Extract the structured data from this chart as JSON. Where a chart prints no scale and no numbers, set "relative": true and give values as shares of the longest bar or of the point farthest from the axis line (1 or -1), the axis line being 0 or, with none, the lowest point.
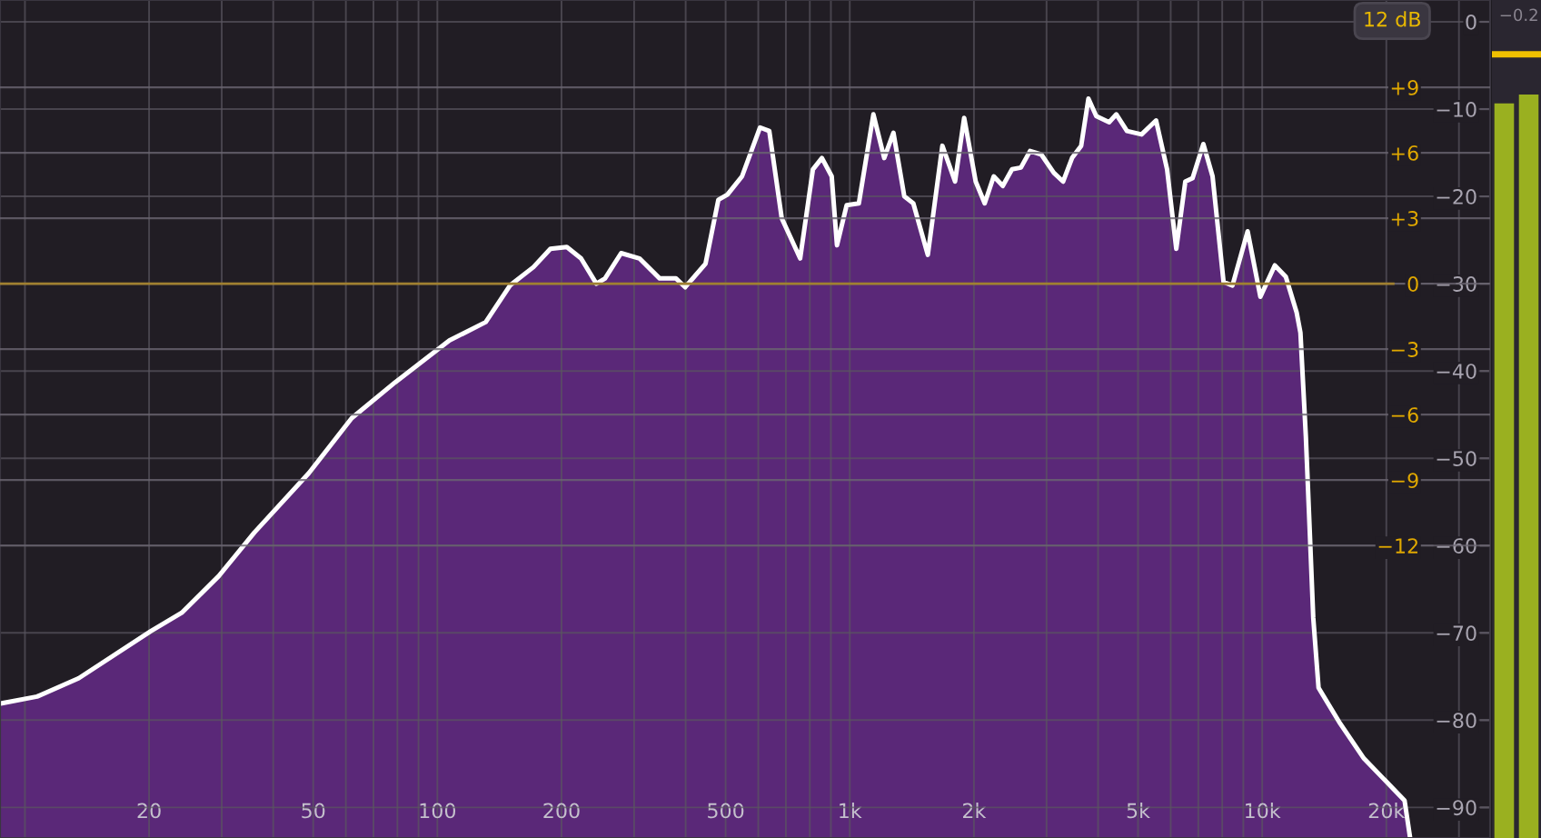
{
  "chart_data": [
    {
      "type": "area",
      "x": [
        8.7,
        10.7,
        13.5,
        20.2,
        24,
        29.5,
        36,
        48.8,
        62,
        79,
        107,
        131,
        150,
        171,
        188,
        206,
        223,
        243,
        255,
        279,
        309,
        346,
        379,
        399,
        447,
        480,
        505,
        548,
        606,
        638,
        684,
        758,
        814,
        856,
        904,
        931,
        983,
        1052,
        1141,
        1212,
        1276,
        1356,
        1426,
        1546,
        1677,
        1800,
        1894,
        2020,
        2124,
        2234,
        2350,
        2474,
        2600,
        2736,
        2914,
        3124,
        3290,
        3459,
        3640,
        3790,
        3960,
        4255,
        4430,
        4700,
        5100,
        5530,
        5880,
        6190,
        6510,
        6780,
        7200,
        7580,
        8060,
        8470,
        9220,
        9900,
        10730,
        11410,
        12120,
        12380,
        12760,
        13030,
        13300,
        13700,
        15460,
        17650,
        22140,
        22810
      ],
      "series": [
        {
          "color": "#5a2878",
          "values": [
            -78.1,
            -77.3,
            -75.2,
            -69.8,
            -67.7,
            -63.5,
            -58.5,
            -51.7,
            -45.4,
            -41.3,
            -36.5,
            -34.4,
            -30.2,
            -28.1,
            -26.0,
            -25.8,
            -27.1,
            -30.0,
            -29.4,
            -26.5,
            -27.1,
            -29.4,
            -29.4,
            -30.4,
            -27.7,
            -20.4,
            -19.8,
            -17.7,
            -12.1,
            -12.5,
            -22.5,
            -27.1,
            -16.9,
            -15.6,
            -17.7,
            -25.6,
            -21.0,
            -20.8,
            -10.6,
            -15.6,
            -12.7,
            -20.0,
            -20.8,
            -26.7,
            -14.2,
            -18.3,
            -11.0,
            -18.3,
            -20.8,
            -17.7,
            -18.8,
            -16.9,
            -16.7,
            -14.8,
            -15.2,
            -17.3,
            -18.3,
            -15.6,
            -14.2,
            -8.8,
            -10.8,
            -11.5,
            -10.6,
            -12.5,
            -12.9,
            -11.3,
            -16.9,
            -26.0,
            -18.3,
            -17.9,
            -14.0,
            -17.7,
            -29.8,
            -30.2,
            -24.0,
            -31.5,
            -27.9,
            -29.2,
            -33.3,
            -35.6,
            -47.5,
            -57.9,
            -68.3,
            -76.3,
            -80.4,
            -84.4,
            -89.2,
            -93.3
          ]
        }
      ],
      "log": "x",
      "xlim": [
        8.7,
        35700
      ],
      "xticks": [
        {
          "value": 10,
          "label": null
        },
        {
          "value": 20,
          "label": "20"
        },
        {
          "value": 30,
          "label": null
        },
        {
          "value": 40,
          "label": null
        },
        {
          "value": 50,
          "label": "50"
        },
        {
          "value": 60,
          "label": null
        },
        {
          "value": 70,
          "label": null
        },
        {
          "value": 80,
          "label": null
        },
        {
          "value": 90,
          "label": null
        },
        {
          "value": 100,
          "label": "100"
        },
        {
          "value": 200,
          "label": "200"
        },
        {
          "value": 300,
          "label": null
        },
        {
          "value": 400,
          "label": null
        },
        {
          "value": 500,
          "label": "500"
        },
        {
          "value": 600,
          "label": null
        },
        {
          "value": 700,
          "label": null
        },
        {
          "value": 800,
          "label": null
        },
        {
          "value": 900,
          "label": null
        },
        {
          "value": 1000,
          "label": "1k"
        },
        {
          "value": 2000,
          "label": "2k"
        },
        {
          "value": 3000,
          "label": null
        },
        {
          "value": 4000,
          "label": null
        },
        {
          "value": 5000,
          "label": "5k"
        },
        {
          "value": 6000,
          "label": null
        },
        {
          "value": 7000,
          "label": null
        },
        {
          "value": 8000,
          "label": null
        },
        {
          "value": 9000,
          "label": null
        },
        {
          "value": 10000,
          "label": "10k"
        },
        {
          "value": 20000,
          "label": "20k"
        },
        {
          "value": 30000,
          "label": null
        }
      ],
      "ylim": [
        -93.5,
        2.5
      ],
      "yticks": [
        0,
        {
          "value": -10,
          "label": "−10"
        },
        {
          "value": -20,
          "label": "−20"
        },
        {
          "value": -30,
          "label": "−30"
        },
        {
          "value": -40,
          "label": "−40"
        },
        {
          "value": -50,
          "label": "−50"
        },
        {
          "value": -60,
          "label": "−60"
        },
        {
          "value": -70,
          "label": "−70"
        },
        {
          "value": -80,
          "label": "−80"
        },
        {
          "value": -90,
          "label": "−90"
        }
      ],
      "y2lim": [
        -25.4,
        13
      ],
      "y2ticks": [
        {
          "value": 9,
          "label": "+9"
        },
        {
          "value": 6,
          "label": "+6"
        },
        {
          "value": 3,
          "label": "+3"
        },
        0,
        {
          "value": -3,
          "label": "−3"
        },
        {
          "value": -6,
          "label": "−6"
        },
        {
          "value": -9,
          "label": "−9"
        },
        {
          "value": -12,
          "label": "−12"
        }
      ],
      "ref_lines": [
        {
          "axis": "y2",
          "value": 0,
          "color": "#a08030"
        }
      ],
      "grid": true,
      "annotations": [
        "12 dB"
      ]
    },
    {
      "type": "bar",
      "relative": true,
      "categories": [
        null,
        null
      ],
      "series": [
        {
          "color": "#9ab020",
          "values": [
            0.988,
            1
          ]
        }
      ],
      "ref_lines": [
        {
          "axis": "y",
          "value": 1.054,
          "color": "#f0c000"
        }
      ],
      "annotations": [
        "−0.2"
      ]
    }
  ]
}
